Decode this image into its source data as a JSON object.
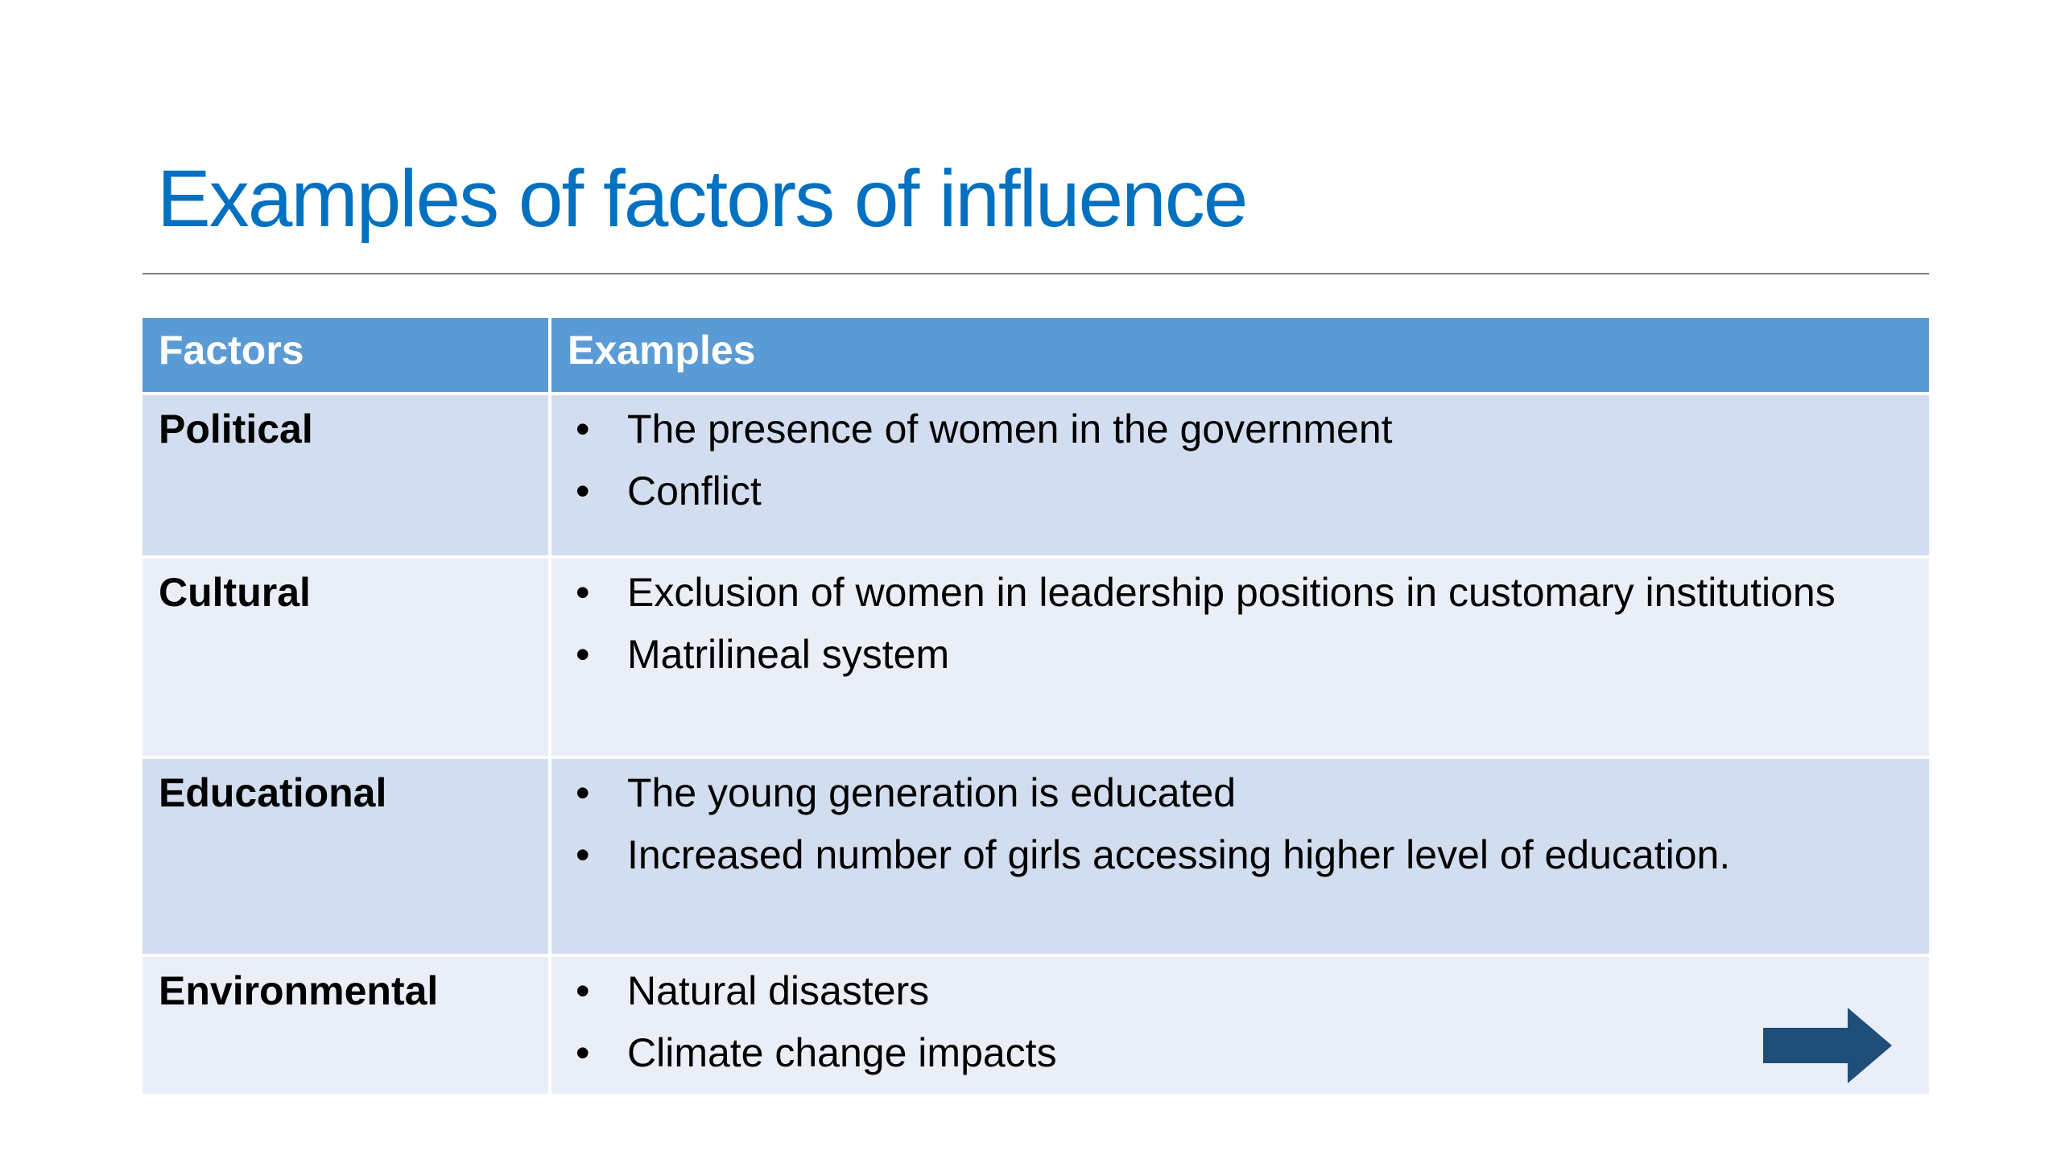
{
  "header": {
    "title": "Examples of factors of influence"
  },
  "table": {
    "columns": [
      "Factors",
      "Examples"
    ],
    "rows": [
      {
        "factor": "Political",
        "examples": [
          "The presence of women in the government",
          "Conflict"
        ]
      },
      {
        "factor": "Cultural",
        "examples": [
          "Exclusion of women in leadership positions in customary institutions",
          "Matrilineal system"
        ]
      },
      {
        "factor": "Educational",
        "examples": [
          "The young generation is educated",
          "Increased number of girls accessing higher level of education."
        ]
      },
      {
        "factor": "Environmental",
        "examples": [
          "Natural disasters",
          "Climate change impacts"
        ]
      }
    ]
  }
}
